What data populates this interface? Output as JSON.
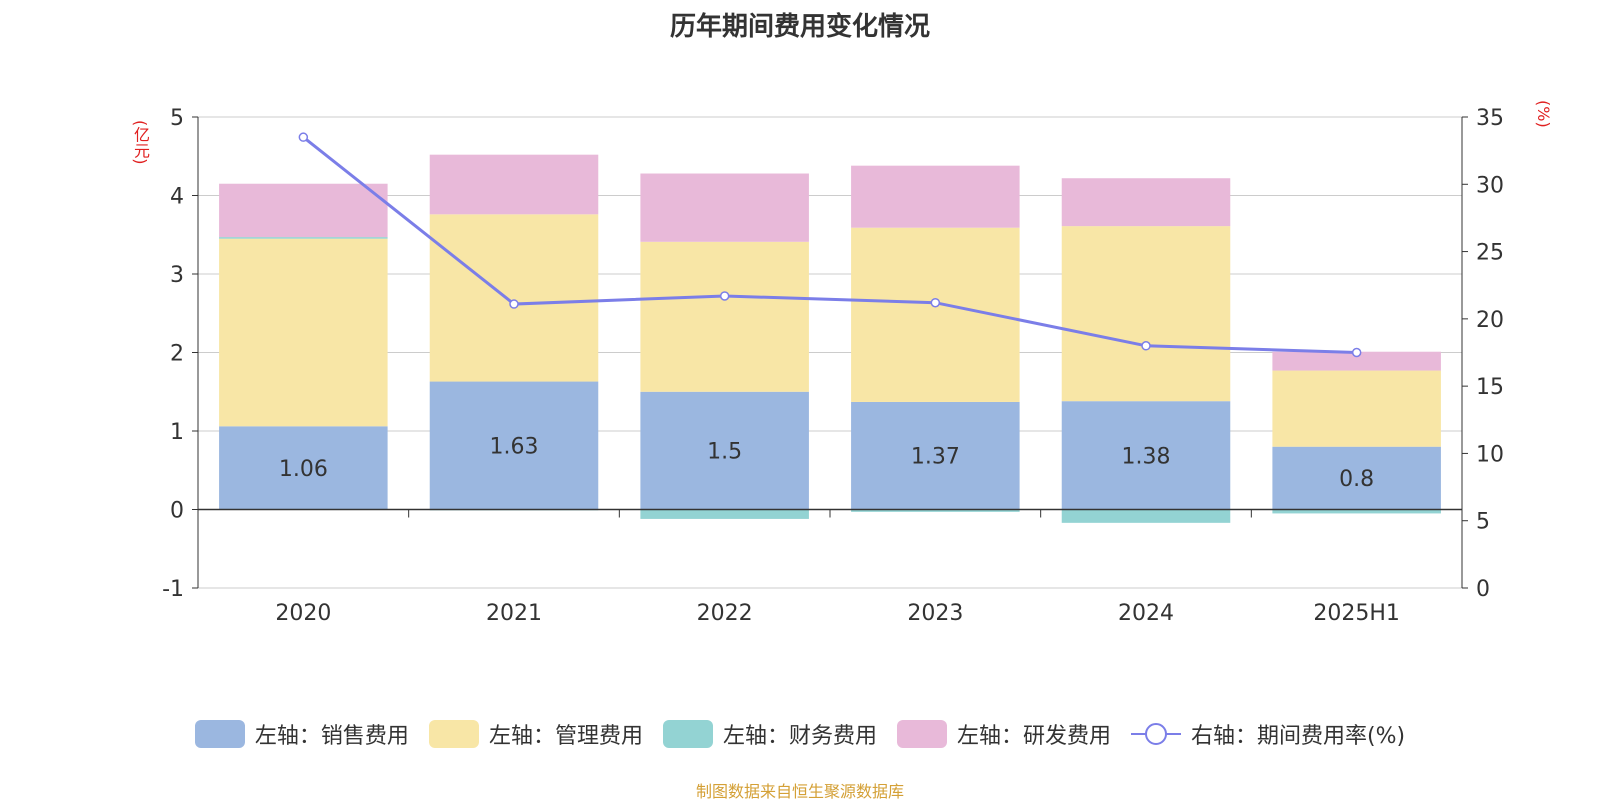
{
  "chart_data": {
    "type": "bar",
    "stacked": true,
    "title": "历年期间费用变化情况",
    "categories": [
      "2020",
      "2021",
      "2022",
      "2023",
      "2024",
      "2025H1"
    ],
    "left_axis": {
      "unit_label": "(亿元)",
      "ylim": [
        -1,
        5
      ],
      "ticks": [
        5,
        4,
        3,
        2,
        1,
        0,
        -1
      ]
    },
    "right_axis": {
      "unit_label": "(%)",
      "ylim": [
        0,
        35
      ],
      "ticks": [
        35,
        30,
        25,
        20,
        15,
        10,
        5,
        0
      ]
    },
    "series": [
      {
        "name": "左轴：销售费用",
        "axis": "left",
        "kind": "bar",
        "color": "#9bb7e0",
        "values": [
          1.06,
          1.63,
          1.5,
          1.37,
          1.38,
          0.8
        ],
        "labels": [
          "1.06",
          "1.63",
          "1.5",
          "1.37",
          "1.38",
          "0.8"
        ]
      },
      {
        "name": "左轴：管理费用",
        "axis": "left",
        "kind": "bar",
        "color": "#f8e6a6",
        "values": [
          2.39,
          2.13,
          1.91,
          2.22,
          2.23,
          0.97
        ]
      },
      {
        "name": "左轴：财务费用",
        "axis": "left",
        "kind": "bar",
        "color": "#93d3d3",
        "values": [
          0.02,
          -0.01,
          -0.12,
          -0.03,
          -0.17,
          -0.05
        ]
      },
      {
        "name": "左轴：研发费用",
        "axis": "left",
        "kind": "bar",
        "color": "#e8b9d9",
        "values": [
          0.68,
          0.76,
          0.87,
          0.79,
          0.61,
          0.24
        ]
      },
      {
        "name": "右轴：期间费用率(%)",
        "axis": "right",
        "kind": "line",
        "color": "#7b7ee8",
        "values": [
          33.5,
          21.1,
          21.7,
          21.2,
          18.0,
          17.5
        ]
      }
    ],
    "grid": true,
    "legend_position": "bottom"
  },
  "source_note": "制图数据来自恒生聚源数据库"
}
